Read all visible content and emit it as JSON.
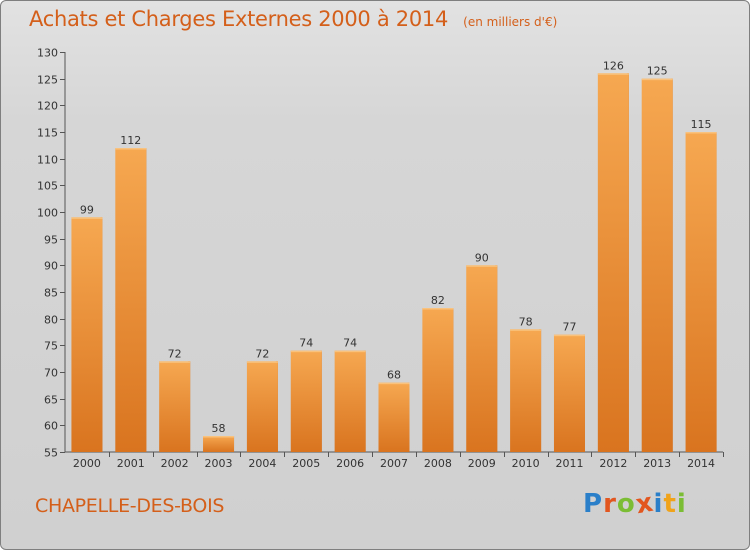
{
  "header": {
    "title": "Achats et Charges Externes 2000 à 2014",
    "subtitle": "(en milliers d'€)"
  },
  "footer": {
    "town": "CHAPELLE-DES-BOIS",
    "logo_letters": [
      {
        "ch": "P",
        "color": "#2a7fc9"
      },
      {
        "ch": "r",
        "color": "#e2561f"
      },
      {
        "ch": "o",
        "color": "#7bbd34"
      },
      {
        "ch": "x",
        "color": "#e2561f"
      },
      {
        "ch": "i",
        "color": "#2a7fc9"
      },
      {
        "ch": "t",
        "color": "#f0a31a"
      },
      {
        "ch": "i",
        "color": "#7bbd34"
      }
    ]
  },
  "colors": {
    "title": "#d45f1a",
    "bar_light": "#f6a851",
    "bar_dark": "#d9741f",
    "axis": "#555555"
  },
  "chart_data": {
    "type": "bar",
    "title": "Achats et Charges Externes 2000 à 2014",
    "subtitle": "(en milliers d'€)",
    "xlabel": "",
    "ylabel": "",
    "categories": [
      "2000",
      "2001",
      "2002",
      "2003",
      "2004",
      "2005",
      "2006",
      "2007",
      "2008",
      "2009",
      "2010",
      "2011",
      "2012",
      "2013",
      "2014"
    ],
    "values": [
      99,
      112,
      72,
      58,
      72,
      74,
      74,
      68,
      82,
      90,
      78,
      77,
      126,
      125,
      115
    ],
    "ylim": [
      55,
      130
    ],
    "yticks": [
      55,
      60,
      65,
      70,
      75,
      80,
      85,
      90,
      95,
      100,
      105,
      110,
      115,
      120,
      125,
      130
    ],
    "grid": false,
    "legend": "none",
    "data_labels": true
  }
}
